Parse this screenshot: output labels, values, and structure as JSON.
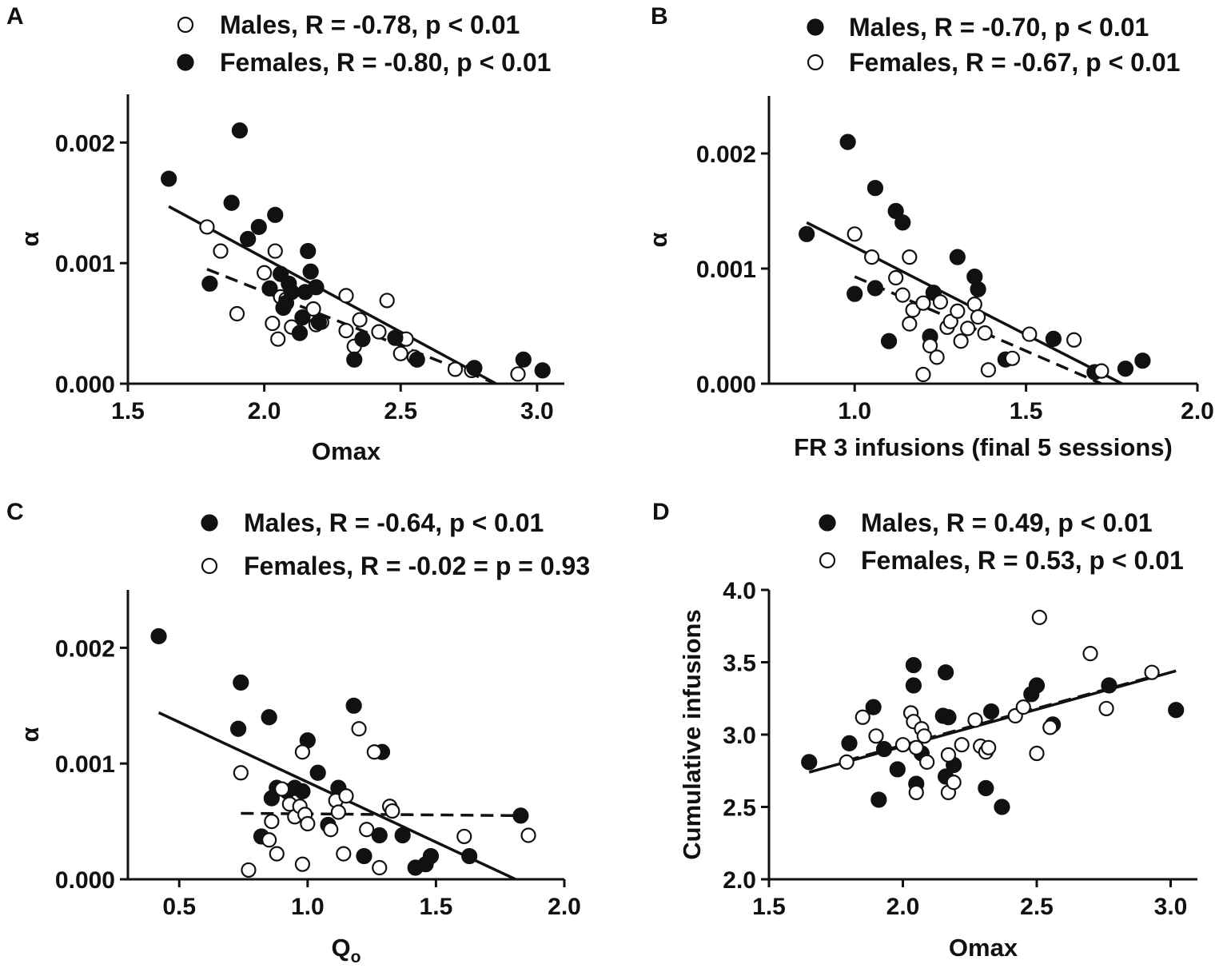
{
  "figure": {
    "colors": {
      "ink": "#111111",
      "open_fill": "#ffffff",
      "filled_fill": "#111111"
    }
  },
  "chart_data": [
    {
      "panel": "A",
      "type": "scatter",
      "xlabel": "Omax",
      "ylabel": "α",
      "xlim": [
        1.5,
        3.1
      ],
      "ylim": [
        0.0,
        0.0024
      ],
      "xticks": [
        "1.5",
        "2.0",
        "2.5",
        "3.0"
      ],
      "xtick_values": [
        1.5,
        2.0,
        2.5,
        3.0
      ],
      "yticks": [
        "0.000",
        "0.001",
        "0.002"
      ],
      "ytick_values": [
        0.0,
        0.001,
        0.002
      ],
      "legend": [
        {
          "label": "Males, R = -0.78, p < 0.01",
          "marker": "open"
        },
        {
          "label": "Females, R = -0.80, p < 0.01",
          "marker": "filled"
        }
      ],
      "series": [
        {
          "name": "Males",
          "marker": "open",
          "points": [
            [
              1.79,
              0.0013
            ],
            [
              1.84,
              0.0011
            ],
            [
              1.9,
              0.00058
            ],
            [
              2.0,
              0.00092
            ],
            [
              2.03,
              0.0005
            ],
            [
              2.04,
              0.0011
            ],
            [
              2.05,
              0.00037
            ],
            [
              2.06,
              0.00072
            ],
            [
              2.08,
              0.0007
            ],
            [
              2.1,
              0.00047
            ],
            [
              2.18,
              0.00062
            ],
            [
              2.19,
              0.00049
            ],
            [
              2.21,
              0.00051
            ],
            [
              2.3,
              0.00073
            ],
            [
              2.3,
              0.00044
            ],
            [
              2.33,
              0.00031
            ],
            [
              2.35,
              0.00053
            ],
            [
              2.42,
              0.00043
            ],
            [
              2.45,
              0.00069
            ],
            [
              2.5,
              0.00025
            ],
            [
              2.52,
              0.00037
            ],
            [
              2.55,
              0.00022
            ],
            [
              2.7,
              0.00012
            ],
            [
              2.76,
              0.00011
            ],
            [
              2.93,
              8e-05
            ]
          ]
        },
        {
          "name": "Females",
          "marker": "filled",
          "points": [
            [
              1.65,
              0.0017
            ],
            [
              1.8,
              0.00083
            ],
            [
              1.88,
              0.0015
            ],
            [
              1.91,
              0.0021
            ],
            [
              1.94,
              0.0012
            ],
            [
              1.98,
              0.0013
            ],
            [
              2.02,
              0.00079
            ],
            [
              2.04,
              0.0014
            ],
            [
              2.06,
              0.00091
            ],
            [
              2.07,
              0.00063
            ],
            [
              2.08,
              0.00067
            ],
            [
              2.09,
              0.00083
            ],
            [
              2.1,
              0.00076
            ],
            [
              2.13,
              0.00042
            ],
            [
              2.14,
              0.00055
            ],
            [
              2.15,
              0.00076
            ],
            [
              2.16,
              0.0011
            ],
            [
              2.17,
              0.00093
            ],
            [
              2.19,
              0.0008
            ],
            [
              2.2,
              0.00051
            ],
            [
              2.33,
              0.0002
            ],
            [
              2.36,
              0.00037
            ],
            [
              2.48,
              0.00038
            ],
            [
              2.56,
              0.0002
            ],
            [
              2.77,
              0.00013
            ],
            [
              2.95,
              0.0002
            ],
            [
              3.02,
              0.00011
            ]
          ]
        }
      ],
      "fits": [
        {
          "name": "Females",
          "style": "solid",
          "x": [
            1.65,
            2.85
          ],
          "y": [
            0.00147,
            0.0
          ]
        },
        {
          "name": "Males",
          "style": "dashed",
          "x": [
            1.79,
            2.85
          ],
          "y": [
            0.00095,
            0.0
          ]
        }
      ]
    },
    {
      "panel": "B",
      "type": "scatter",
      "xlabel": "FR 3 infusions (final 5 sessions)",
      "ylabel": "α",
      "xlim": [
        0.75,
        2.0
      ],
      "ylim": [
        0.0,
        0.0025
      ],
      "xticks": [
        "1.0",
        "1.5",
        "2.0"
      ],
      "xtick_values": [
        1.0,
        1.5,
        2.0
      ],
      "yticks": [
        "0.000",
        "0.001",
        "0.002"
      ],
      "ytick_values": [
        0.0,
        0.001,
        0.002
      ],
      "legend": [
        {
          "label": "Males, R = -0.70, p  < 0.01",
          "marker": "filled"
        },
        {
          "label": "Females,  R = -0.67, p < 0.01",
          "marker": "open"
        }
      ],
      "series": [
        {
          "name": "Males",
          "marker": "filled",
          "points": [
            [
              0.86,
              0.0013
            ],
            [
              0.98,
              0.0021
            ],
            [
              1.0,
              0.00078
            ],
            [
              1.06,
              0.0017
            ],
            [
              1.06,
              0.00083
            ],
            [
              1.1,
              0.00037
            ],
            [
              1.12,
              0.0015
            ],
            [
              1.14,
              0.0014
            ],
            [
              1.22,
              0.00041
            ],
            [
              1.23,
              0.00079
            ],
            [
              1.3,
              0.0011
            ],
            [
              1.35,
              0.00093
            ],
            [
              1.36,
              0.00082
            ],
            [
              1.44,
              0.00021
            ],
            [
              1.58,
              0.00039
            ],
            [
              1.7,
              0.0001
            ],
            [
              1.79,
              0.00013
            ],
            [
              1.84,
              0.0002
            ]
          ]
        },
        {
          "name": "Females",
          "marker": "open",
          "points": [
            [
              1.0,
              0.0013
            ],
            [
              1.05,
              0.0011
            ],
            [
              1.12,
              0.00092
            ],
            [
              1.14,
              0.00077
            ],
            [
              1.16,
              0.0011
            ],
            [
              1.16,
              0.00052
            ],
            [
              1.17,
              0.00064
            ],
            [
              1.2,
              0.0007
            ],
            [
              1.2,
              8e-05
            ],
            [
              1.22,
              0.00033
            ],
            [
              1.24,
              0.00023
            ],
            [
              1.25,
              0.00071
            ],
            [
              1.27,
              0.00049
            ],
            [
              1.28,
              0.00054
            ],
            [
              1.3,
              0.00063
            ],
            [
              1.31,
              0.00037
            ],
            [
              1.33,
              0.00048
            ],
            [
              1.35,
              0.00069
            ],
            [
              1.36,
              0.00058
            ],
            [
              1.38,
              0.00044
            ],
            [
              1.39,
              0.00012
            ],
            [
              1.46,
              0.00022
            ],
            [
              1.51,
              0.00043
            ],
            [
              1.64,
              0.00038
            ],
            [
              1.72,
              0.00011
            ]
          ]
        }
      ],
      "fits": [
        {
          "name": "Males",
          "style": "solid",
          "x": [
            0.86,
            1.78
          ],
          "y": [
            0.0014,
            0.0
          ]
        },
        {
          "name": "Females",
          "style": "dashed",
          "x": [
            1.0,
            1.72
          ],
          "y": [
            0.00093,
            0.0
          ]
        }
      ]
    },
    {
      "panel": "C",
      "type": "scatter",
      "xlabel": "Q",
      "xlabel_sub": "o",
      "ylabel": "α",
      "xlim": [
        0.3,
        2.0
      ],
      "ylim": [
        0.0,
        0.0025
      ],
      "xticks": [
        "0.5",
        "1.0",
        "1.5",
        "2.0"
      ],
      "xtick_values": [
        0.5,
        1.0,
        1.5,
        2.0
      ],
      "yticks": [
        "0.000",
        "0.001",
        "0.002"
      ],
      "ytick_values": [
        0.0,
        0.001,
        0.002
      ],
      "legend": [
        {
          "label": "Males, R = -0.64, p  < 0.01",
          "marker": "filled"
        },
        {
          "label": "Females,  R = -0.02 = p = 0.93",
          "marker": "open"
        }
      ],
      "series": [
        {
          "name": "Males",
          "marker": "filled",
          "points": [
            [
              0.42,
              0.0021
            ],
            [
              0.73,
              0.0013
            ],
            [
              0.74,
              0.0017
            ],
            [
              0.82,
              0.00037
            ],
            [
              0.85,
              0.0014
            ],
            [
              0.86,
              0.0007
            ],
            [
              0.88,
              0.00079
            ],
            [
              0.92,
              0.00076
            ],
            [
              0.95,
              0.00079
            ],
            [
              0.98,
              0.00076
            ],
            [
              1.0,
              0.0012
            ],
            [
              1.04,
              0.00092
            ],
            [
              1.08,
              0.00047
            ],
            [
              1.12,
              0.00079
            ],
            [
              1.18,
              0.0015
            ],
            [
              1.22,
              0.0002
            ],
            [
              1.28,
              0.00038
            ],
            [
              1.29,
              0.0011
            ],
            [
              1.37,
              0.00038
            ],
            [
              1.42,
              0.0001
            ],
            [
              1.46,
              0.00013
            ],
            [
              1.48,
              0.0002
            ],
            [
              1.63,
              0.0002
            ],
            [
              1.83,
              0.00055
            ]
          ]
        },
        {
          "name": "Females",
          "marker": "open",
          "points": [
            [
              0.74,
              0.00092
            ],
            [
              0.77,
              8e-05
            ],
            [
              0.85,
              0.00034
            ],
            [
              0.86,
              0.0005
            ],
            [
              0.88,
              0.00022
            ],
            [
              0.9,
              0.00078
            ],
            [
              0.93,
              0.00065
            ],
            [
              0.95,
              0.00054
            ],
            [
              0.97,
              0.00063
            ],
            [
              0.98,
              0.00013
            ],
            [
              0.98,
              0.0011
            ],
            [
              0.99,
              0.00056
            ],
            [
              1.0,
              0.00048
            ],
            [
              1.09,
              0.00043
            ],
            [
              1.11,
              0.00068
            ],
            [
              1.12,
              0.00058
            ],
            [
              1.14,
              0.00022
            ],
            [
              1.15,
              0.00072
            ],
            [
              1.2,
              0.0013
            ],
            [
              1.23,
              0.00043
            ],
            [
              1.26,
              0.0011
            ],
            [
              1.28,
              0.0001
            ],
            [
              1.32,
              0.00063
            ],
            [
              1.33,
              0.00059
            ],
            [
              1.61,
              0.00037
            ],
            [
              1.86,
              0.00038
            ]
          ]
        }
      ],
      "fits": [
        {
          "name": "Males",
          "style": "solid",
          "x": [
            0.42,
            1.81
          ],
          "y": [
            0.00144,
            0.0
          ]
        },
        {
          "name": "Females",
          "style": "dashed",
          "x": [
            0.74,
            1.83
          ],
          "y": [
            0.00057,
            0.00055
          ]
        }
      ]
    },
    {
      "panel": "D",
      "type": "scatter",
      "xlabel": "Omax",
      "ylabel": "Cumulative infusions",
      "xlim": [
        1.5,
        3.1
      ],
      "ylim": [
        2.0,
        4.0
      ],
      "xticks": [
        "1.5",
        "2.0",
        "2.5",
        "3.0"
      ],
      "xtick_values": [
        1.5,
        2.0,
        2.5,
        3.0
      ],
      "yticks": [
        "2.0",
        "2.5",
        "3.0",
        "3.5",
        "4.0"
      ],
      "ytick_values": [
        2.0,
        2.5,
        3.0,
        3.5,
        4.0
      ],
      "legend": [
        {
          "label": "Males, R = 0.49, p  < 0.01",
          "marker": "filled"
        },
        {
          "label": "Females,  R = 0.53, p < 0.01",
          "marker": "open"
        }
      ],
      "series": [
        {
          "name": "Males",
          "marker": "filled",
          "points": [
            [
              1.65,
              2.81
            ],
            [
              1.8,
              2.94
            ],
            [
              1.89,
              3.19
            ],
            [
              1.91,
              2.55
            ],
            [
              1.93,
              2.9
            ],
            [
              1.98,
              2.76
            ],
            [
              2.04,
              3.48
            ],
            [
              2.04,
              3.34
            ],
            [
              2.05,
              2.66
            ],
            [
              2.07,
              2.87
            ],
            [
              2.15,
              3.13
            ],
            [
              2.16,
              2.71
            ],
            [
              2.16,
              3.43
            ],
            [
              2.17,
              3.12
            ],
            [
              2.19,
              2.79
            ],
            [
              2.31,
              2.63
            ],
            [
              2.33,
              3.16
            ],
            [
              2.37,
              2.5
            ],
            [
              2.48,
              3.28
            ],
            [
              2.5,
              3.34
            ],
            [
              2.56,
              3.07
            ],
            [
              2.77,
              3.34
            ],
            [
              3.02,
              3.17
            ]
          ]
        },
        {
          "name": "Females",
          "marker": "open",
          "points": [
            [
              1.79,
              2.81
            ],
            [
              1.85,
              3.12
            ],
            [
              1.9,
              2.99
            ],
            [
              2.0,
              2.93
            ],
            [
              2.03,
              3.15
            ],
            [
              2.04,
              3.09
            ],
            [
              2.05,
              2.6
            ],
            [
              2.05,
              2.91
            ],
            [
              2.07,
              3.04
            ],
            [
              2.08,
              2.99
            ],
            [
              2.09,
              2.81
            ],
            [
              2.17,
              2.6
            ],
            [
              2.17,
              2.86
            ],
            [
              2.19,
              2.67
            ],
            [
              2.22,
              2.93
            ],
            [
              2.27,
              3.1
            ],
            [
              2.29,
              2.92
            ],
            [
              2.31,
              2.88
            ],
            [
              2.32,
              2.91
            ],
            [
              2.42,
              3.13
            ],
            [
              2.45,
              3.19
            ],
            [
              2.5,
              2.87
            ],
            [
              2.51,
              3.81
            ],
            [
              2.55,
              3.05
            ],
            [
              2.7,
              3.56
            ],
            [
              2.76,
              3.18
            ],
            [
              2.93,
              3.43
            ]
          ]
        }
      ],
      "fits": [
        {
          "name": "Males",
          "style": "solid",
          "x": [
            1.65,
            3.02
          ],
          "y": [
            2.74,
            3.44
          ]
        },
        {
          "name": "Females",
          "style": "dashed",
          "x": [
            1.79,
            2.93
          ],
          "y": [
            2.82,
            3.4
          ]
        }
      ]
    }
  ]
}
